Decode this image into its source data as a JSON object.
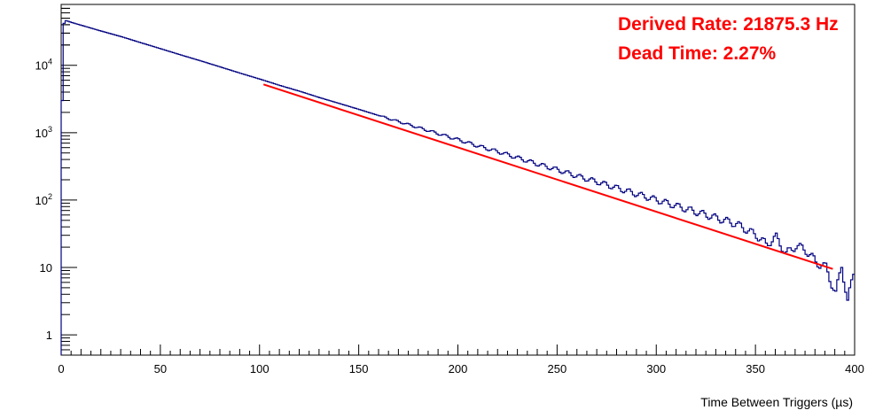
{
  "chart_data": {
    "type": "line",
    "title": "",
    "xlabel": "Time Between Triggers (µs)",
    "ylabel": "",
    "xlim": [
      0,
      400
    ],
    "ylim": [
      0.5,
      80000
    ],
    "y_scale": "log",
    "grid": false,
    "legend": "none",
    "x_ticks": [
      0,
      50,
      100,
      150,
      200,
      250,
      300,
      350,
      400
    ],
    "x_tick_labels": [
      "0",
      "50",
      "100",
      "150",
      "200",
      "250",
      "300",
      "350",
      "400"
    ],
    "y_ticks": [
      1,
      10,
      100,
      1000,
      10000
    ],
    "y_tick_labels": [
      "1",
      "10",
      "10^2",
      "10^3",
      "10^4"
    ],
    "colors": {
      "histogram": "#000080",
      "fit": "#ff0000",
      "annotation": "#ff0000"
    },
    "annotations": [
      {
        "text": "Derived Rate: 21875.3 Hz"
      },
      {
        "text": "Dead Time: 2.27%"
      }
    ],
    "series": [
      {
        "style": "step-histogram",
        "x": [
          0,
          1,
          2,
          3,
          5,
          10,
          20,
          30,
          40,
          50,
          60,
          70,
          80,
          90,
          100,
          110,
          120,
          130,
          140,
          150,
          160,
          170,
          180,
          190,
          200,
          210,
          220,
          230,
          240,
          250,
          260,
          270,
          280,
          290,
          300,
          310,
          320,
          330,
          340,
          350,
          355,
          360,
          365,
          370,
          375,
          380,
          385,
          390,
          393,
          396,
          398,
          400
        ],
        "y": [
          3000,
          42000,
          46000,
          45000,
          43000,
          39000,
          32000,
          26500,
          21500,
          17500,
          14200,
          11600,
          9400,
          7600,
          6200,
          5000,
          4100,
          3300,
          2700,
          2200,
          1780,
          1450,
          1180,
          960,
          780,
          630,
          520,
          420,
          340,
          280,
          225,
          185,
          150,
          122,
          100,
          81,
          66,
          54,
          44,
          30,
          22,
          28,
          16,
          21,
          18,
          12,
          10,
          4,
          11,
          3,
          6,
          12
        ]
      },
      {
        "style": "fit-line",
        "x": [
          102,
          389
        ],
        "y": [
          5200,
          9.5
        ]
      }
    ]
  }
}
